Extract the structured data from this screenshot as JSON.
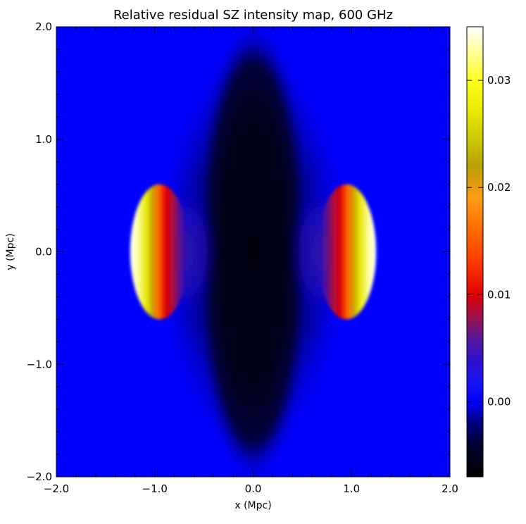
{
  "chart_data": {
    "type": "heatmap",
    "title": "Relative residual SZ intensity map,  600 GHz",
    "xlabel": "x (Mpc)",
    "ylabel": "y (Mpc)",
    "xlim": [
      -2.0,
      2.0
    ],
    "ylim": [
      -2.0,
      2.0
    ],
    "x_ticks": [
      -2.0,
      -1.0,
      0.0,
      1.0,
      2.0
    ],
    "x_tick_labels": [
      "−2.0",
      "−1.0",
      "0.0",
      "1.0",
      "2.0"
    ],
    "y_ticks": [
      -2.0,
      -1.0,
      0.0,
      1.0,
      2.0
    ],
    "y_tick_labels": [
      "−2.0",
      "−1.0",
      "0.0",
      "1.0",
      "2.0"
    ],
    "colorbar": {
      "range": [
        -0.007,
        0.035
      ],
      "ticks": [
        0.0,
        0.01,
        0.02,
        0.03
      ],
      "tick_labels": [
        "0.00",
        "0.01",
        "0.02",
        "0.03"
      ],
      "colormap": [
        {
          "v": -0.007,
          "color": "#000000"
        },
        {
          "v": -0.004,
          "color": "#000033"
        },
        {
          "v": -0.002,
          "color": "#00007a"
        },
        {
          "v": 0.0,
          "color": "#0000ff"
        },
        {
          "v": 0.002,
          "color": "#1a14f0"
        },
        {
          "v": 0.004,
          "color": "#3010c8"
        },
        {
          "v": 0.006,
          "color": "#5a1898"
        },
        {
          "v": 0.008,
          "color": "#a0104a"
        },
        {
          "v": 0.01,
          "color": "#e00000"
        },
        {
          "v": 0.013,
          "color": "#ff3a00"
        },
        {
          "v": 0.016,
          "color": "#ff6a00"
        },
        {
          "v": 0.019,
          "color": "#ff9c18"
        },
        {
          "v": 0.022,
          "color": "#b8a000"
        },
        {
          "v": 0.024,
          "color": "#c8c000"
        },
        {
          "v": 0.027,
          "color": "#e8e800"
        },
        {
          "v": 0.03,
          "color": "#ffff20"
        },
        {
          "v": 0.033,
          "color": "#ffffa8"
        },
        {
          "v": 0.035,
          "color": "#ffffff"
        }
      ]
    },
    "background_value": 0.0,
    "features": [
      {
        "kind": "central-dark-lens",
        "center": [
          0.0,
          0.0
        ],
        "semi_axes": [
          0.6,
          2.1
        ],
        "value": -0.006
      },
      {
        "kind": "dark-halo",
        "center": [
          0.0,
          0.0
        ],
        "semi_axes": [
          1.05,
          1.95
        ],
        "value": -0.0035
      },
      {
        "kind": "shock-front-left",
        "center": [
          -1.0,
          0.0
        ],
        "semi_axes": [
          0.3,
          0.6
        ],
        "peak_value": 0.035
      },
      {
        "kind": "shock-front-right",
        "center": [
          1.0,
          0.0
        ],
        "semi_axes": [
          0.3,
          0.6
        ],
        "peak_value": 0.035
      }
    ]
  }
}
